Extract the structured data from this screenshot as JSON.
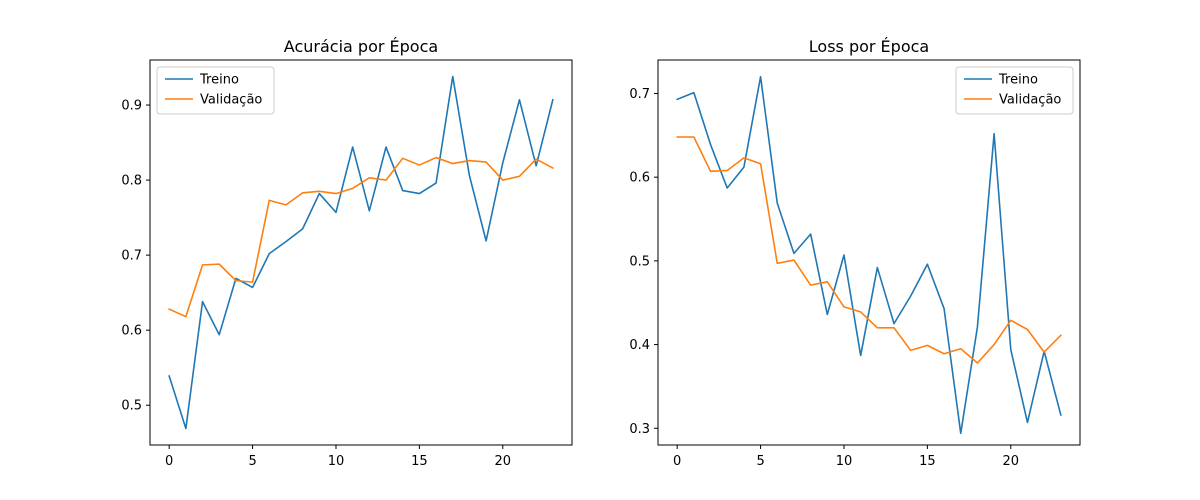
{
  "chart_data": [
    {
      "type": "line",
      "title": "Acurácia por Época",
      "xlabel": "",
      "ylabel": "",
      "xlim": [
        -1.15,
        24.15
      ],
      "ylim": [
        0.447,
        0.96
      ],
      "xticks": [
        0,
        5,
        10,
        15,
        20
      ],
      "yticks": [
        0.5,
        0.6,
        0.7,
        0.8,
        0.9
      ],
      "ytick_labels": [
        "0.5",
        "0.6",
        "0.7",
        "0.8",
        "0.9"
      ],
      "legend": "top-left",
      "grid": false,
      "x": [
        0,
        1,
        2,
        3,
        4,
        5,
        6,
        7,
        8,
        9,
        10,
        11,
        12,
        13,
        14,
        15,
        16,
        17,
        18,
        19,
        20,
        21,
        22,
        23
      ],
      "series": [
        {
          "name": "Treino",
          "color": "#1f77b4",
          "values": [
            0.539,
            0.469,
            0.638,
            0.594,
            0.669,
            0.657,
            0.702,
            0.718,
            0.735,
            0.782,
            0.757,
            0.844,
            0.759,
            0.844,
            0.786,
            0.782,
            0.796,
            0.938,
            0.806,
            0.719,
            0.823,
            0.907,
            0.819,
            0.907
          ]
        },
        {
          "name": "Validação",
          "color": "#ff7f0e",
          "values": [
            0.628,
            0.618,
            0.687,
            0.688,
            0.666,
            0.664,
            0.773,
            0.767,
            0.783,
            0.785,
            0.782,
            0.789,
            0.803,
            0.8,
            0.829,
            0.82,
            0.83,
            0.822,
            0.826,
            0.824,
            0.8,
            0.805,
            0.828,
            0.816
          ]
        }
      ]
    },
    {
      "type": "line",
      "title": "Loss por Época",
      "xlabel": "",
      "ylabel": "",
      "xlim": [
        -1.15,
        24.15
      ],
      "ylim": [
        0.28,
        0.74
      ],
      "xticks": [
        0,
        5,
        10,
        15,
        20
      ],
      "yticks": [
        0.3,
        0.4,
        0.5,
        0.6,
        0.7
      ],
      "ytick_labels": [
        "0.3",
        "0.4",
        "0.5",
        "0.6",
        "0.7"
      ],
      "legend": "top-right",
      "grid": false,
      "x": [
        0,
        1,
        2,
        3,
        4,
        5,
        6,
        7,
        8,
        9,
        10,
        11,
        12,
        13,
        14,
        15,
        16,
        17,
        18,
        19,
        20,
        21,
        22,
        23
      ],
      "series": [
        {
          "name": "Treino",
          "color": "#1f77b4",
          "values": [
            0.693,
            0.701,
            0.639,
            0.587,
            0.612,
            0.72,
            0.569,
            0.509,
            0.532,
            0.436,
            0.507,
            0.387,
            0.492,
            0.425,
            0.458,
            0.496,
            0.443,
            0.294,
            0.421,
            0.652,
            0.394,
            0.307,
            0.392,
            0.316
          ]
        },
        {
          "name": "Validação",
          "color": "#ff7f0e",
          "values": [
            0.648,
            0.648,
            0.607,
            0.608,
            0.623,
            0.616,
            0.497,
            0.501,
            0.471,
            0.475,
            0.445,
            0.439,
            0.42,
            0.42,
            0.393,
            0.399,
            0.389,
            0.395,
            0.378,
            0.4,
            0.429,
            0.418,
            0.391,
            0.411
          ]
        }
      ]
    }
  ]
}
